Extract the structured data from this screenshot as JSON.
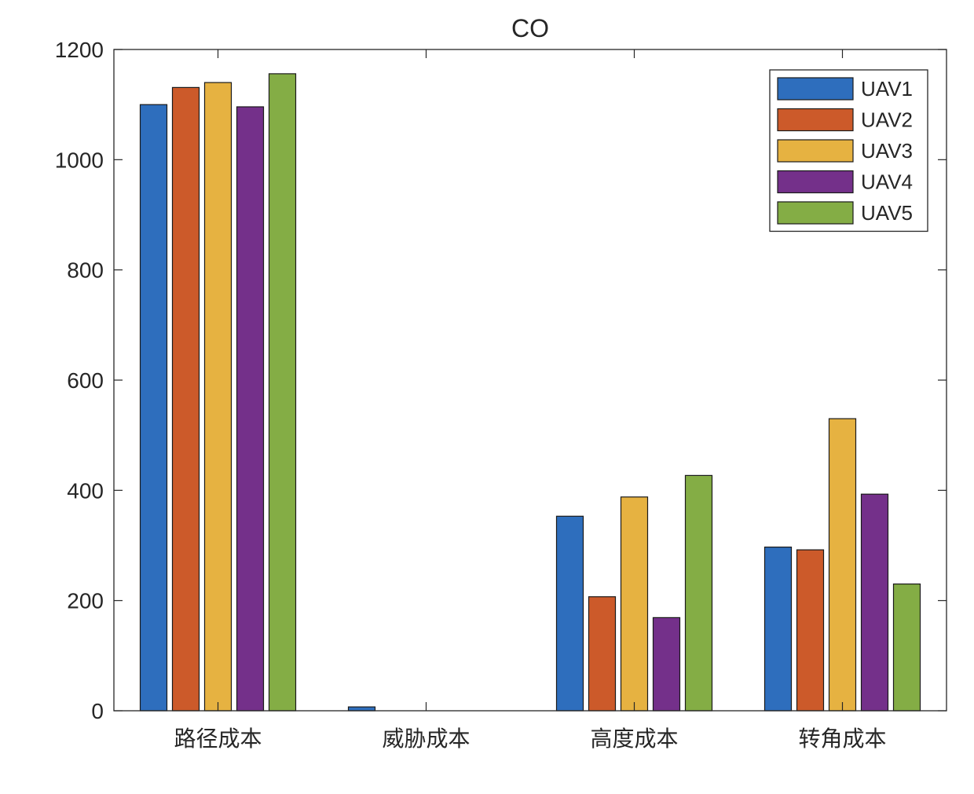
{
  "chart_data": {
    "type": "bar",
    "title": "CO",
    "xlabel": "",
    "ylabel": "",
    "categories": [
      "路径成本",
      "威胁成本",
      "高度成本",
      "转角成本"
    ],
    "yticks": [
      "0",
      "200",
      "400",
      "600",
      "800",
      "1000",
      "1200"
    ],
    "ylim": [
      0,
      1200
    ],
    "series": [
      {
        "name": "UAV1",
        "color": "#2e6ebd",
        "values": [
          1100,
          7,
          353,
          297
        ]
      },
      {
        "name": "UAV2",
        "color": "#cc5a2a",
        "values": [
          1131,
          0,
          207,
          292
        ]
      },
      {
        "name": "UAV3",
        "color": "#e6b241",
        "values": [
          1140,
          0,
          388,
          530
        ]
      },
      {
        "name": "UAV4",
        "color": "#74308a",
        "values": [
          1096,
          0,
          169,
          393
        ]
      },
      {
        "name": "UAV5",
        "color": "#84ad45",
        "values": [
          1156,
          0,
          427,
          230
        ]
      }
    ],
    "legend_location": "top-right",
    "grid": false
  }
}
